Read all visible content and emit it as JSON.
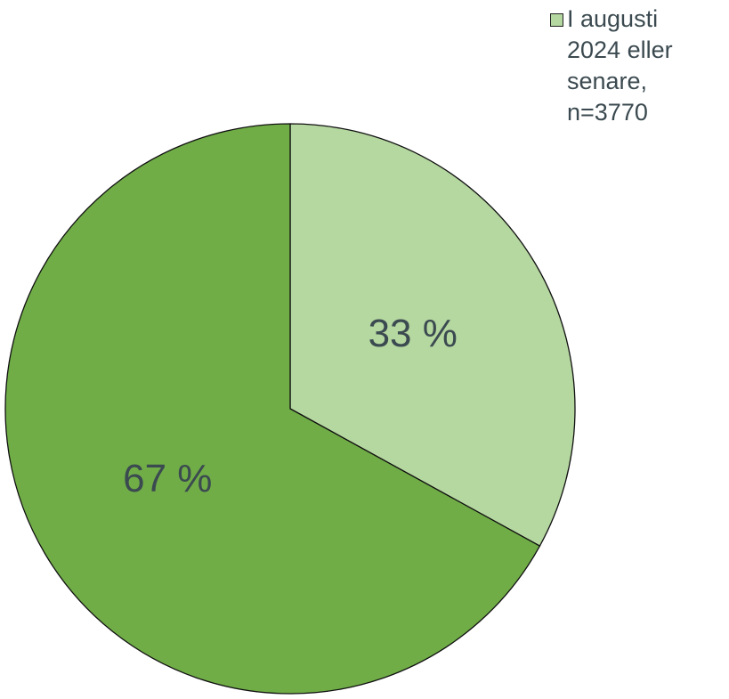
{
  "chart_data": {
    "type": "pie",
    "categories": [
      "I augusti 2024 eller senare, n=3770",
      null
    ],
    "values": [
      33,
      67
    ],
    "value_labels": [
      "33 %",
      "67 %"
    ],
    "colors": [
      "#b5d7a0",
      "#70ad47"
    ]
  }
}
